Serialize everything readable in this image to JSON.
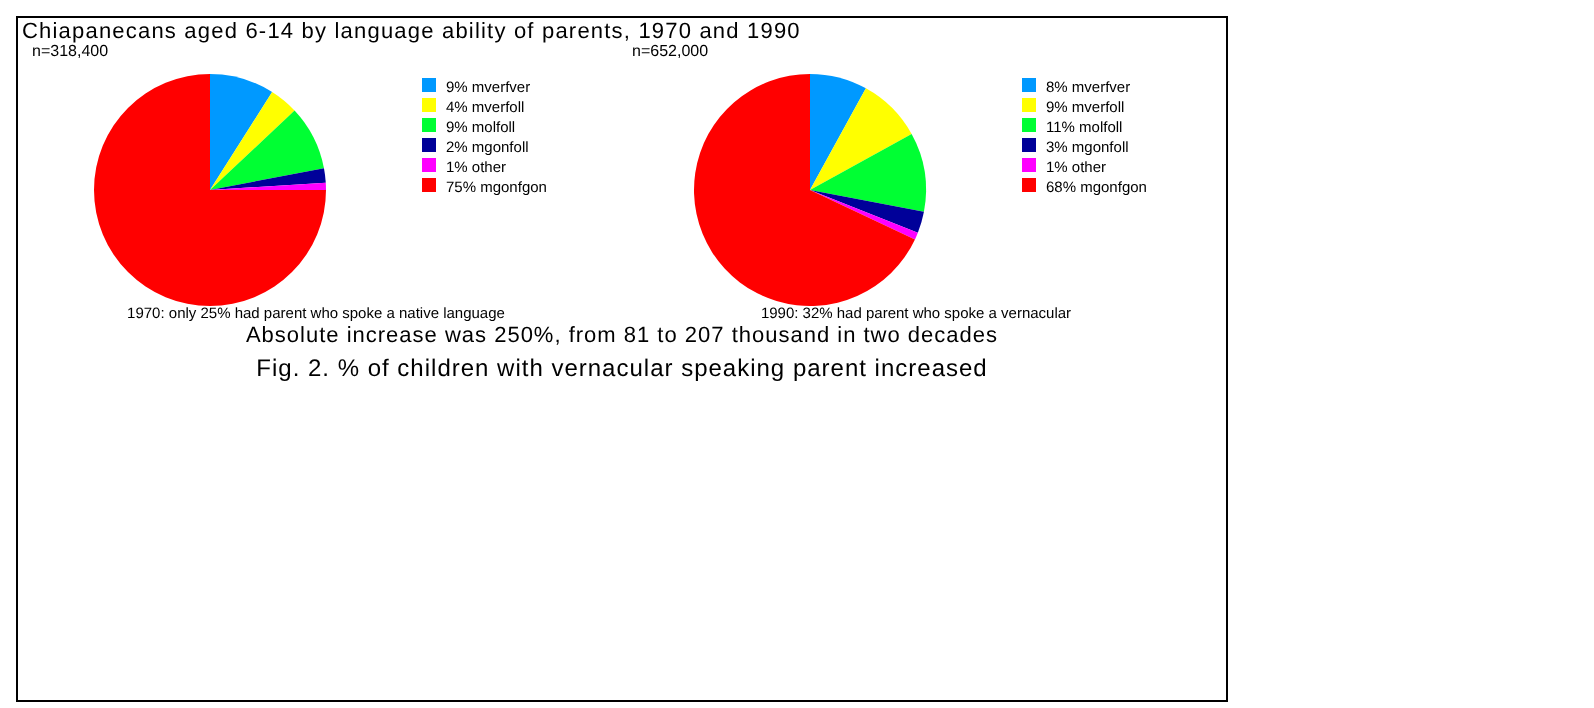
{
  "chart_data": [
    {
      "type": "pie",
      "title": "Chiapanecans aged 6-14 by language ability of parents, 1970 and 1990",
      "categories": [
        "9% mverfver",
        "4% mverfoll",
        "9% molfoll",
        "2% mgonfoll",
        "1% other",
        "75% mgonfgon"
      ],
      "values": [
        9,
        4,
        9,
        2,
        1,
        75
      ],
      "colors": [
        "#0099ff",
        "#ffff00",
        "#00ff33",
        "#000099",
        "#ff00ff",
        "#ff0000"
      ],
      "legend": "right",
      "annotations": [
        "n=318,400",
        "1970: only 25% had parent who spoke a native language",
        "Absolute increase was 250%, from 81 to 207 thousand in two decades",
        "Fig. 2. % of children with vernacular speaking parent increased"
      ]
    },
    {
      "type": "pie",
      "categories": [
        "8% mverfver",
        "9% mverfoll",
        "11% molfoll",
        "3% mgonfoll",
        "1% other",
        "68% mgonfgon"
      ],
      "values": [
        8,
        9,
        11,
        3,
        1,
        68
      ],
      "colors": [
        "#0099ff",
        "#ffff00",
        "#00ff33",
        "#000099",
        "#ff00ff",
        "#ff0000"
      ],
      "legend": "right",
      "annotations": [
        "n=652,000",
        "1990: 32% had parent who spoke a vernacular"
      ]
    }
  ]
}
